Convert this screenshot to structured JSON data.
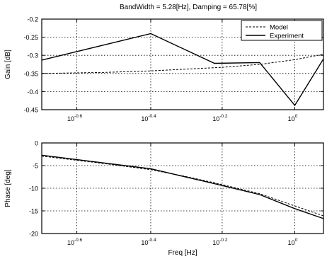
{
  "chart_data": [
    {
      "type": "line",
      "title": "BandWidth = 5.28[Hz], Damping = 65.78[%]",
      "xlabel": "",
      "ylabel": "Gain [dB]",
      "xscale": "log",
      "xlim": [
        0.2,
        1.2
      ],
      "ylim": [
        -0.45,
        -0.2
      ],
      "x_ticks": [
        0.25,
        0.4,
        0.63,
        1.0
      ],
      "x_tick_labels": [
        {
          "base": "10",
          "exp": "-0.6"
        },
        {
          "base": "10",
          "exp": "-0.4"
        },
        {
          "base": "10",
          "exp": "-0.2"
        },
        {
          "base": "10",
          "exp": "0"
        }
      ],
      "y_ticks": [
        -0.45,
        -0.4,
        -0.35,
        -0.3,
        -0.25,
        -0.2
      ],
      "y_tick_labels": [
        "-0.45",
        "-0.4",
        "-0.35",
        "-0.3",
        "-0.25",
        "-0.2"
      ],
      "grid": true,
      "legend": {
        "placement": "top-right"
      },
      "series": [
        {
          "name": "Model",
          "style": "dashed",
          "color": "#000000",
          "x": [
            0.2,
            0.3,
            0.4,
            0.5,
            0.63,
            0.8,
            1.0,
            1.2
          ],
          "y": [
            -0.35,
            -0.347,
            -0.343,
            -0.338,
            -0.333,
            -0.325,
            -0.312,
            -0.297
          ]
        },
        {
          "name": "Experiment",
          "style": "solid",
          "color": "#000000",
          "x": [
            0.2,
            0.4,
            0.6,
            0.8,
            1.0,
            1.2
          ],
          "y": [
            -0.313,
            -0.24,
            -0.322,
            -0.32,
            -0.438,
            -0.31
          ]
        }
      ]
    },
    {
      "type": "line",
      "title": "",
      "xlabel": "Freq [Hz]",
      "ylabel": "Phase [deg]",
      "xscale": "log",
      "xlim": [
        0.2,
        1.2
      ],
      "ylim": [
        -20,
        0
      ],
      "x_ticks": [
        0.25,
        0.4,
        0.63,
        1.0
      ],
      "x_tick_labels": [
        {
          "base": "10",
          "exp": "-0.6"
        },
        {
          "base": "10",
          "exp": "-0.4"
        },
        {
          "base": "10",
          "exp": "-0.2"
        },
        {
          "base": "10",
          "exp": "0"
        }
      ],
      "y_ticks": [
        -20,
        -15,
        -10,
        -5,
        0
      ],
      "y_tick_labels": [
        "-20",
        "-15",
        "-10",
        "-5",
        "0"
      ],
      "grid": true,
      "series": [
        {
          "name": "Model",
          "style": "dashed",
          "color": "#000000",
          "x": [
            0.2,
            0.3,
            0.4,
            0.5,
            0.6,
            0.8,
            1.0,
            1.2
          ],
          "y": [
            -2.9,
            -4.6,
            -5.9,
            -7.4,
            -8.8,
            -11.2,
            -13.9,
            -16.1
          ]
        },
        {
          "name": "Experiment",
          "style": "solid",
          "color": "#000000",
          "x": [
            0.2,
            0.4,
            0.6,
            0.8,
            1.0,
            1.2
          ],
          "y": [
            -2.7,
            -5.7,
            -9.0,
            -11.4,
            -14.5,
            -16.7
          ]
        }
      ]
    }
  ]
}
